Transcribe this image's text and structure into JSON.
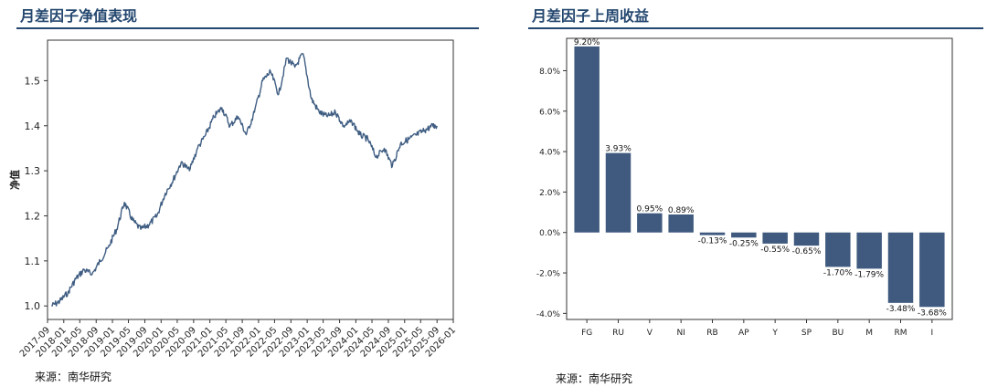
{
  "left": {
    "title": "月差因子净值表现",
    "source": "来源：南华研究"
  },
  "right": {
    "title": "月差因子上周收益",
    "source": "来源：南华研究"
  },
  "colors": {
    "accent": "#24476f",
    "series": "#3f5d82",
    "bar": "#3f5a7e"
  },
  "chart_data": [
    {
      "type": "line",
      "title": "",
      "xlabel": "",
      "ylabel": "净值",
      "ylim": [
        0.97,
        1.59
      ],
      "yticks": [
        1.0,
        1.1,
        1.2,
        1.3,
        1.4,
        1.5
      ],
      "ytick_labels": [
        "1.0",
        "1.1",
        "1.2",
        "1.3",
        "1.4",
        "1.5"
      ],
      "xticks": [
        "2017-09",
        "2018-01",
        "2018-05",
        "2018-09",
        "2019-01",
        "2019-05",
        "2019-09",
        "2020-01",
        "2020-05",
        "2020-09",
        "2021-01",
        "2021-05",
        "2021-09",
        "2022-01",
        "2022-05",
        "2022-09",
        "2023-01",
        "2023-05",
        "2023-09",
        "2024-01",
        "2024-05",
        "2024-09",
        "2025-01",
        "2025-05",
        "2025-09",
        "2026-01"
      ],
      "grid": false,
      "series": [
        {
          "x": [
            "2017-10",
            "2017-12",
            "2018-02",
            "2018-04",
            "2018-06",
            "2018-08",
            "2018-10",
            "2018-12",
            "2019-02",
            "2019-04",
            "2019-06",
            "2019-08",
            "2019-10",
            "2019-12",
            "2020-02",
            "2020-04",
            "2020-06",
            "2020-08",
            "2020-10",
            "2020-12",
            "2021-02",
            "2021-04",
            "2021-06",
            "2021-08",
            "2021-10",
            "2021-12",
            "2022-02",
            "2022-04",
            "2022-06",
            "2022-08",
            "2022-10",
            "2022-12",
            "2023-02",
            "2023-04",
            "2023-06",
            "2023-08",
            "2023-10",
            "2023-12",
            "2024-02",
            "2024-04",
            "2024-06",
            "2024-08",
            "2024-10",
            "2024-12",
            "2025-02",
            "2025-04",
            "2025-06",
            "2025-08",
            "2025-09"
          ],
          "values": [
            1.0,
            1.01,
            1.03,
            1.06,
            1.08,
            1.07,
            1.1,
            1.13,
            1.17,
            1.23,
            1.19,
            1.17,
            1.18,
            1.2,
            1.25,
            1.28,
            1.32,
            1.3,
            1.35,
            1.38,
            1.42,
            1.44,
            1.4,
            1.42,
            1.38,
            1.43,
            1.5,
            1.52,
            1.47,
            1.55,
            1.53,
            1.56,
            1.46,
            1.43,
            1.42,
            1.43,
            1.4,
            1.41,
            1.38,
            1.37,
            1.33,
            1.35,
            1.31,
            1.36,
            1.37,
            1.38,
            1.39,
            1.4,
            1.4
          ]
        }
      ]
    },
    {
      "type": "bar",
      "title": "",
      "xlabel": "",
      "ylabel": "",
      "ylim": [
        -4.3,
        9.6
      ],
      "yticks": [
        -4.0,
        -2.0,
        0.0,
        2.0,
        4.0,
        6.0,
        8.0
      ],
      "ytick_labels": [
        "-4.0%",
        "-2.0%",
        "0.0%",
        "2.0%",
        "4.0%",
        "6.0%",
        "8.0%"
      ],
      "grid": false,
      "categories": [
        "FG",
        "RU",
        "V",
        "NI",
        "RB",
        "AP",
        "Y",
        "SP",
        "BU",
        "M",
        "RM",
        "I"
      ],
      "values": [
        9.2,
        3.93,
        0.95,
        0.89,
        -0.13,
        -0.25,
        -0.55,
        -0.65,
        -1.7,
        -1.79,
        -3.48,
        -3.68
      ],
      "labels": [
        "9.20%",
        "3.93%",
        "0.95%",
        "0.89%",
        "-0.13%",
        "-0.25%",
        "-0.55%",
        "-0.65%",
        "-1.70%",
        "-1.79%",
        "-3.48%",
        "-3.68%"
      ]
    }
  ]
}
